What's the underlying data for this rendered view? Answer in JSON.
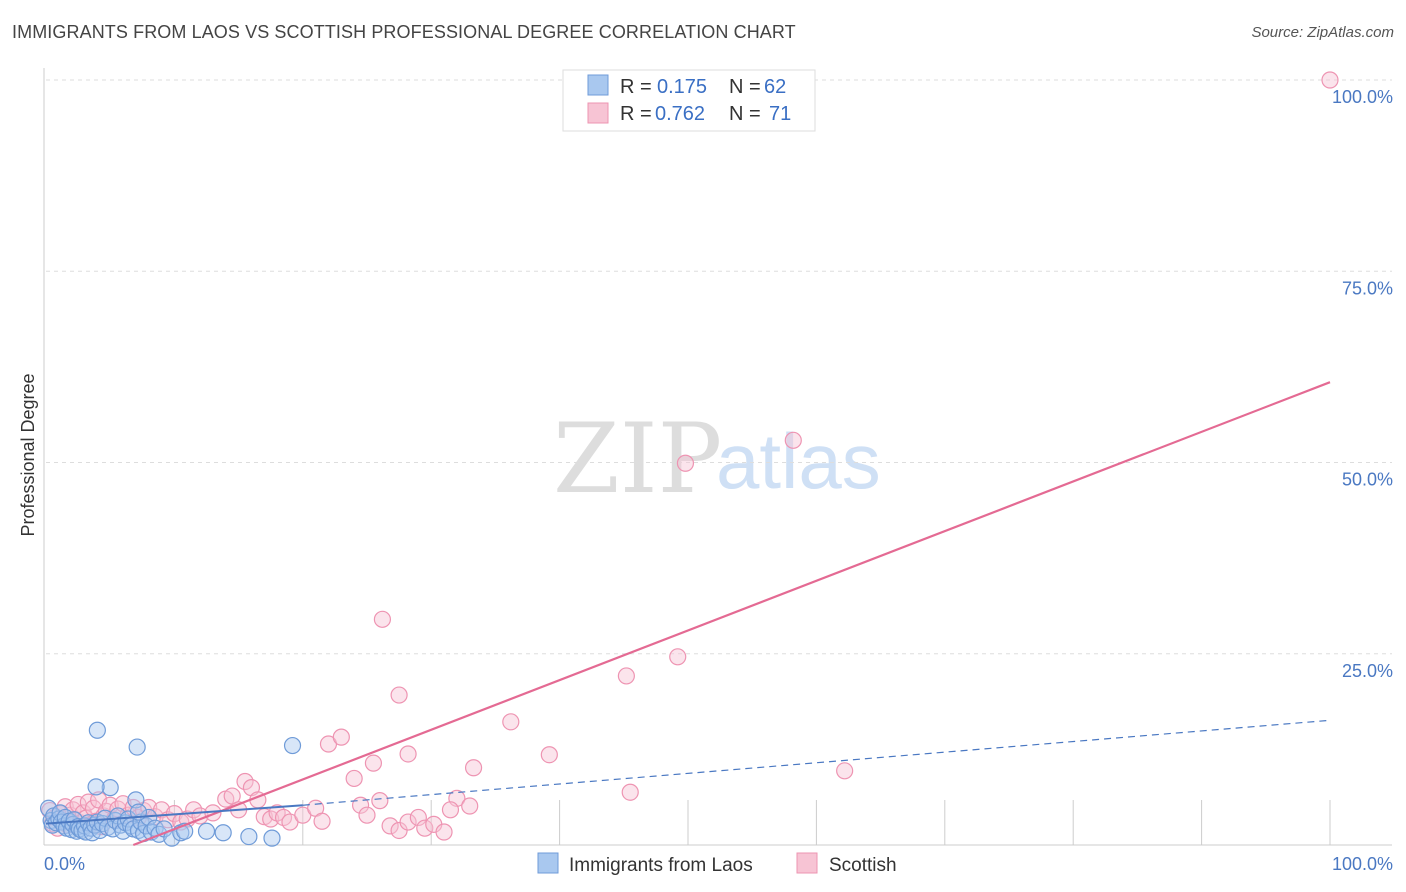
{
  "title": "IMMIGRANTS FROM LAOS VS SCOTTISH PROFESSIONAL DEGREE CORRELATION CHART",
  "source": "Source: ZipAtlas.com",
  "watermark": {
    "zip": "ZIP",
    "atlas": "atlas"
  },
  "colors": {
    "blue": "#4a78c2",
    "blue_fill": "#a9c8ef",
    "blue_stroke": "#6f9bd8",
    "pink": "#e46a93",
    "pink_fill": "#f7c4d4",
    "pink_stroke": "#ee94b2",
    "grid": "#dddddd"
  },
  "legend": {
    "rows": [
      {
        "r_label": "R =",
        "r_value": "0.175",
        "n_label": "N =",
        "n_value": "62"
      },
      {
        "r_label": "R =",
        "r_value": "0.762",
        "n_label": "N =",
        "n_value": "71"
      }
    ]
  },
  "chart_data": {
    "type": "scatter",
    "title": "IMMIGRANTS FROM LAOS VS SCOTTISH PROFESSIONAL DEGREE CORRELATION CHART",
    "xlabel": "",
    "ylabel": "Professional Degree",
    "xlim": [
      0,
      100
    ],
    "ylim": [
      0,
      100
    ],
    "x_tick_labels": [
      "0.0%",
      "100.0%"
    ],
    "y_ticks": [
      25,
      50,
      75,
      100
    ],
    "y_tick_labels": [
      "25.0%",
      "50.0%",
      "75.0%",
      "100.0%"
    ],
    "series": [
      {
        "name": "Immigrants from Laos",
        "r": 0.175,
        "n": 62,
        "trend_solid": [
          [
            0,
            2.8
          ],
          [
            20,
            5.2
          ]
        ],
        "trend_dashed": [
          [
            20,
            5.2
          ],
          [
            100,
            16.3
          ]
        ],
        "points": [
          [
            0.2,
            4.8
          ],
          [
            0.4,
            3.2
          ],
          [
            0.5,
            2.6
          ],
          [
            0.6,
            3.8
          ],
          [
            0.8,
            2.9
          ],
          [
            1.0,
            3.4
          ],
          [
            1.1,
            4.2
          ],
          [
            1.2,
            3.0
          ],
          [
            1.4,
            2.5
          ],
          [
            1.5,
            3.6
          ],
          [
            1.6,
            2.2
          ],
          [
            1.8,
            3.1
          ],
          [
            2.0,
            2.0
          ],
          [
            2.1,
            2.7
          ],
          [
            2.2,
            3.3
          ],
          [
            2.4,
            1.8
          ],
          [
            2.5,
            2.4
          ],
          [
            2.6,
            2.1
          ],
          [
            2.8,
            1.9
          ],
          [
            3.0,
            2.5
          ],
          [
            3.1,
            1.7
          ],
          [
            3.3,
            2.9
          ],
          [
            3.5,
            2.2
          ],
          [
            3.6,
            1.6
          ],
          [
            3.8,
            2.6
          ],
          [
            4.0,
            3.0
          ],
          [
            4.2,
            1.9
          ],
          [
            4.4,
            2.8
          ],
          [
            4.6,
            3.5
          ],
          [
            4.8,
            2.3
          ],
          [
            5.0,
            7.5
          ],
          [
            5.2,
            2.1
          ],
          [
            5.4,
            3.2
          ],
          [
            5.6,
            3.8
          ],
          [
            5.8,
            2.6
          ],
          [
            6.0,
            1.8
          ],
          [
            6.2,
            2.9
          ],
          [
            6.4,
            3.4
          ],
          [
            6.6,
            2.5
          ],
          [
            6.8,
            2.1
          ],
          [
            7.0,
            5.9
          ],
          [
            7.2,
            1.9
          ],
          [
            7.4,
            3.0
          ],
          [
            7.6,
            1.5
          ],
          [
            7.8,
            2.5
          ],
          [
            8.0,
            3.6
          ],
          [
            8.2,
            1.7
          ],
          [
            8.5,
            2.2
          ],
          [
            8.8,
            1.4
          ],
          [
            9.2,
            2.1
          ],
          [
            9.8,
            0.9
          ],
          [
            10.5,
            1.6
          ],
          [
            7.2,
            4.3
          ],
          [
            3.9,
            7.6
          ],
          [
            4.0,
            15.0
          ],
          [
            7.1,
            12.8
          ],
          [
            10.8,
            1.8
          ],
          [
            12.5,
            1.8
          ],
          [
            13.8,
            1.6
          ],
          [
            15.8,
            1.1
          ],
          [
            17.6,
            0.9
          ],
          [
            19.2,
            13.0
          ]
        ]
      },
      {
        "name": "Scottish",
        "r": 0.762,
        "n": 71,
        "trend_solid": [
          [
            6.8,
            0.0
          ],
          [
            100,
            60.5
          ]
        ],
        "points": [
          [
            0.3,
            4.5
          ],
          [
            0.5,
            2.8
          ],
          [
            0.7,
            3.6
          ],
          [
            0.9,
            2.2
          ],
          [
            1.1,
            4.1
          ],
          [
            1.3,
            3.0
          ],
          [
            1.5,
            5.0
          ],
          [
            1.7,
            2.6
          ],
          [
            1.9,
            3.9
          ],
          [
            2.1,
            4.6
          ],
          [
            2.3,
            3.2
          ],
          [
            2.5,
            5.3
          ],
          [
            2.7,
            2.9
          ],
          [
            2.9,
            4.2
          ],
          [
            3.1,
            3.5
          ],
          [
            3.3,
            5.6
          ],
          [
            3.5,
            2.7
          ],
          [
            3.7,
            4.8
          ],
          [
            3.9,
            3.1
          ],
          [
            4.1,
            5.9
          ],
          [
            4.3,
            2.4
          ],
          [
            4.5,
            3.8
          ],
          [
            4.7,
            4.4
          ],
          [
            5.0,
            5.2
          ],
          [
            5.3,
            3.3
          ],
          [
            5.6,
            4.7
          ],
          [
            6.0,
            5.4
          ],
          [
            6.4,
            3.9
          ],
          [
            6.8,
            4.9
          ],
          [
            7.2,
            3.6
          ],
          [
            7.6,
            4.5
          ],
          [
            8.0,
            4.9
          ],
          [
            8.5,
            3.7
          ],
          [
            9.0,
            4.6
          ],
          [
            9.5,
            3.3
          ],
          [
            10.0,
            4.1
          ],
          [
            10.5,
            3.0
          ],
          [
            11.0,
            3.4
          ],
          [
            11.5,
            4.6
          ],
          [
            12.0,
            3.8
          ],
          [
            13.0,
            4.2
          ],
          [
            14.0,
            6.0
          ],
          [
            14.5,
            6.4
          ],
          [
            15.0,
            4.6
          ],
          [
            15.5,
            8.3
          ],
          [
            16.0,
            7.5
          ],
          [
            16.5,
            5.9
          ],
          [
            17.0,
            3.7
          ],
          [
            17.5,
            3.4
          ],
          [
            18.0,
            4.2
          ],
          [
            18.5,
            3.6
          ],
          [
            19.0,
            3.0
          ],
          [
            20.0,
            3.9
          ],
          [
            21.0,
            4.8
          ],
          [
            21.5,
            3.1
          ],
          [
            22.0,
            13.2
          ],
          [
            23.0,
            14.1
          ],
          [
            24.0,
            8.7
          ],
          [
            24.5,
            5.2
          ],
          [
            25.0,
            3.9
          ],
          [
            25.5,
            10.7
          ],
          [
            26.0,
            5.8
          ],
          [
            26.8,
            2.5
          ],
          [
            27.5,
            1.9
          ],
          [
            28.2,
            3.0
          ],
          [
            29.0,
            3.6
          ],
          [
            29.5,
            2.2
          ],
          [
            30.2,
            2.7
          ],
          [
            31.0,
            1.7
          ],
          [
            32.0,
            6.1
          ],
          [
            33.0,
            5.1
          ]
        ],
        "outliers": [
          [
            26.2,
            29.5
          ],
          [
            27.5,
            19.6
          ],
          [
            28.2,
            11.9
          ],
          [
            31.5,
            4.6
          ],
          [
            33.3,
            10.1
          ],
          [
            36.2,
            16.1
          ],
          [
            39.2,
            11.8
          ],
          [
            45.2,
            22.1
          ],
          [
            45.5,
            6.9
          ],
          [
            49.2,
            24.6
          ],
          [
            49.8,
            49.9
          ],
          [
            58.2,
            52.9
          ],
          [
            62.2,
            9.7
          ],
          [
            100,
            100.0
          ]
        ]
      }
    ]
  },
  "bottom_legend": {
    "items": [
      {
        "label": "Immigrants from Laos"
      },
      {
        "label": "Scottish"
      }
    ]
  }
}
